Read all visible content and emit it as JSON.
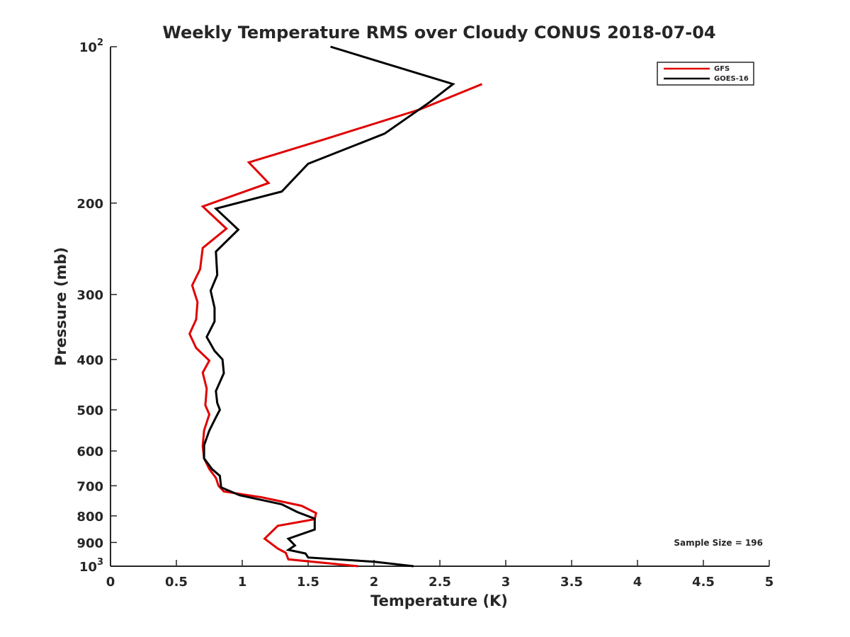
{
  "chart_data": {
    "type": "line",
    "title": "Weekly Temperature RMS over Cloudy CONUS 2018-07-04",
    "xlabel": "Temperature (K)",
    "ylabel": "Pressure (mb)",
    "xlim": [
      0,
      5
    ],
    "ylim": [
      100,
      1000
    ],
    "y_scale": "log",
    "y_reversed": true,
    "x_ticks": [
      0,
      0.5,
      1,
      1.5,
      2,
      2.5,
      3,
      3.5,
      4,
      4.5,
      5
    ],
    "x_tick_labels": [
      "0",
      "0.5",
      "1",
      "1.5",
      "2",
      "2.5",
      "3",
      "3.5",
      "4",
      "4.5",
      "5"
    ],
    "y_ticks": [
      100,
      200,
      300,
      400,
      500,
      600,
      700,
      800,
      900,
      1000
    ],
    "y_tick_labels": [
      {
        "base": "10",
        "sup": "2"
      },
      {
        "base": "200",
        "sup": ""
      },
      {
        "base": "300",
        "sup": ""
      },
      {
        "base": "400",
        "sup": ""
      },
      {
        "base": "500",
        "sup": ""
      },
      {
        "base": "600",
        "sup": ""
      },
      {
        "base": "700",
        "sup": ""
      },
      {
        "base": "800",
        "sup": ""
      },
      {
        "base": "900",
        "sup": ""
      },
      {
        "base": "10",
        "sup": "3"
      }
    ],
    "grid": false,
    "legend_position": "top-right",
    "annotation": "Sample Size = 196",
    "series": [
      {
        "name": "GFS",
        "color": "#e00000",
        "points": [
          [
            2.82,
            118
          ],
          [
            2.35,
            132
          ],
          [
            1.65,
            150
          ],
          [
            1.05,
            167
          ],
          [
            1.2,
            183
          ],
          [
            0.7,
            203
          ],
          [
            0.88,
            224
          ],
          [
            0.7,
            244
          ],
          [
            0.68,
            268
          ],
          [
            0.62,
            288
          ],
          [
            0.66,
            310
          ],
          [
            0.65,
            335
          ],
          [
            0.6,
            357
          ],
          [
            0.65,
            380
          ],
          [
            0.75,
            402
          ],
          [
            0.7,
            424
          ],
          [
            0.73,
            455
          ],
          [
            0.72,
            490
          ],
          [
            0.75,
            510
          ],
          [
            0.71,
            548
          ],
          [
            0.7,
            587
          ],
          [
            0.71,
            620
          ],
          [
            0.75,
            650
          ],
          [
            0.8,
            676
          ],
          [
            0.82,
            700
          ],
          [
            0.86,
            718
          ],
          [
            1.15,
            737
          ],
          [
            1.45,
            765
          ],
          [
            1.56,
            790
          ],
          [
            1.55,
            812
          ],
          [
            1.27,
            836
          ],
          [
            1.17,
            885
          ],
          [
            1.27,
            925
          ],
          [
            1.33,
            942
          ],
          [
            1.35,
            970
          ],
          [
            1.88,
            1000
          ]
        ]
      },
      {
        "name": "GOES-16",
        "color": "#000000",
        "points": [
          [
            1.67,
            100
          ],
          [
            2.6,
            118
          ],
          [
            2.42,
            128
          ],
          [
            2.08,
            147
          ],
          [
            1.5,
            168
          ],
          [
            1.3,
            190
          ],
          [
            0.8,
            205
          ],
          [
            0.97,
            225
          ],
          [
            0.8,
            248
          ],
          [
            0.81,
            275
          ],
          [
            0.76,
            295
          ],
          [
            0.79,
            318
          ],
          [
            0.79,
            338
          ],
          [
            0.73,
            362
          ],
          [
            0.79,
            385
          ],
          [
            0.85,
            400
          ],
          [
            0.86,
            425
          ],
          [
            0.8,
            460
          ],
          [
            0.81,
            485
          ],
          [
            0.83,
            500
          ],
          [
            0.8,
            517
          ],
          [
            0.75,
            548
          ],
          [
            0.71,
            585
          ],
          [
            0.71,
            620
          ],
          [
            0.77,
            650
          ],
          [
            0.83,
            670
          ],
          [
            0.84,
            705
          ],
          [
            0.98,
            730
          ],
          [
            1.3,
            760
          ],
          [
            1.42,
            787
          ],
          [
            1.55,
            810
          ],
          [
            1.55,
            850
          ],
          [
            1.35,
            885
          ],
          [
            1.4,
            912
          ],
          [
            1.35,
            930
          ],
          [
            1.48,
            945
          ],
          [
            1.5,
            962
          ],
          [
            2.0,
            980
          ],
          [
            2.3,
            1000
          ]
        ]
      }
    ]
  }
}
